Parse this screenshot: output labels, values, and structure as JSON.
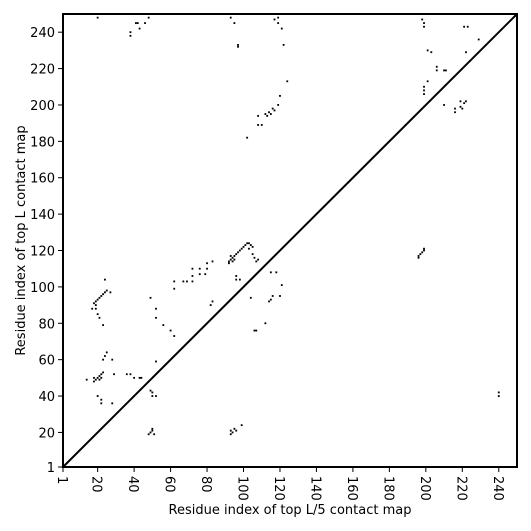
{
  "chart_data": {
    "type": "scatter",
    "xlabel": "Residue index of top L/5 contact map",
    "ylabel": "Residue index of top L contact map",
    "xlim": [
      1,
      250
    ],
    "ylim": [
      1,
      250
    ],
    "x_ticks": [
      "1",
      "20",
      "40",
      "60",
      "80",
      "100",
      "120",
      "140",
      "160",
      "180",
      "200",
      "220",
      "240"
    ],
    "y_ticks": [
      "1",
      "20",
      "40",
      "60",
      "80",
      "100",
      "120",
      "140",
      "160",
      "180",
      "200",
      "220",
      "240"
    ],
    "diagonal": true,
    "color": "#000000",
    "upper_points": [
      [
        20,
        248
      ],
      [
        38,
        240
      ],
      [
        38,
        238
      ],
      [
        41,
        245
      ],
      [
        42,
        245
      ],
      [
        43,
        242
      ],
      [
        46,
        245
      ],
      [
        48,
        248
      ],
      [
        93,
        248
      ],
      [
        95,
        245
      ],
      [
        97,
        233
      ],
      [
        97,
        232
      ],
      [
        117,
        247
      ],
      [
        119,
        248
      ],
      [
        119,
        245
      ],
      [
        121,
        242
      ],
      [
        122,
        233
      ],
      [
        198,
        247
      ],
      [
        199,
        245
      ],
      [
        199,
        243
      ],
      [
        201,
        230
      ],
      [
        203,
        229
      ],
      [
        206,
        221
      ],
      [
        206,
        219
      ],
      [
        210,
        219
      ],
      [
        211,
        219
      ],
      [
        221,
        243
      ],
      [
        223,
        243
      ],
      [
        222,
        229
      ],
      [
        229,
        236
      ],
      [
        124,
        213
      ],
      [
        120,
        205
      ],
      [
        119,
        200
      ],
      [
        116,
        198
      ],
      [
        114,
        196
      ],
      [
        115,
        195
      ],
      [
        113,
        194
      ],
      [
        112,
        195
      ],
      [
        117,
        197
      ],
      [
        108,
        194
      ],
      [
        108,
        189
      ],
      [
        110,
        189
      ],
      [
        102,
        182
      ],
      [
        118,
        108
      ],
      [
        115,
        108
      ],
      [
        116,
        95
      ],
      [
        120,
        95
      ],
      [
        114,
        92
      ],
      [
        115,
        93
      ],
      [
        121,
        101
      ],
      [
        104,
        94
      ],
      [
        106,
        76
      ],
      [
        107,
        76
      ],
      [
        112,
        80
      ],
      [
        106,
        116
      ],
      [
        107,
        114
      ],
      [
        108,
        115
      ],
      [
        105,
        122
      ],
      [
        105,
        118
      ]
    ],
    "lower_points": [
      [
        196,
        116
      ],
      [
        196,
        117
      ],
      [
        197,
        118
      ],
      [
        198,
        119
      ],
      [
        199,
        120
      ],
      [
        199,
        121
      ],
      [
        199,
        210
      ],
      [
        199,
        208
      ],
      [
        199,
        206
      ],
      [
        201,
        213
      ],
      [
        210,
        200
      ],
      [
        216,
        196
      ],
      [
        216,
        198
      ],
      [
        219,
        199
      ],
      [
        220,
        198
      ],
      [
        221,
        201
      ],
      [
        222,
        202
      ],
      [
        219,
        202
      ],
      [
        240,
        42
      ],
      [
        240,
        40
      ],
      [
        19,
        90
      ],
      [
        18,
        91
      ],
      [
        19,
        92
      ],
      [
        20,
        93
      ],
      [
        21,
        94
      ],
      [
        22,
        95
      ],
      [
        23,
        96
      ],
      [
        24,
        97
      ],
      [
        25,
        98
      ],
      [
        27,
        97
      ],
      [
        24,
        104
      ],
      [
        19,
        88
      ],
      [
        20,
        85
      ],
      [
        21,
        83
      ],
      [
        23,
        79
      ],
      [
        17,
        88
      ],
      [
        18,
        48
      ],
      [
        19,
        49
      ],
      [
        20,
        50
      ],
      [
        21,
        51
      ],
      [
        22,
        52
      ],
      [
        23,
        53
      ],
      [
        21,
        49
      ],
      [
        22,
        50
      ],
      [
        18,
        50
      ],
      [
        14,
        49
      ],
      [
        20,
        40
      ],
      [
        22,
        38
      ],
      [
        22,
        36
      ],
      [
        23,
        60
      ],
      [
        24,
        62
      ],
      [
        25,
        64
      ],
      [
        28,
        60
      ],
      [
        29,
        52
      ],
      [
        28,
        36
      ],
      [
        36,
        52
      ],
      [
        38,
        52
      ],
      [
        40,
        50
      ],
      [
        43,
        50
      ],
      [
        44,
        50
      ],
      [
        49,
        43
      ],
      [
        50,
        42
      ],
      [
        52,
        40
      ],
      [
        50,
        40
      ],
      [
        48,
        19
      ],
      [
        49,
        20
      ],
      [
        50,
        21
      ],
      [
        50,
        22
      ],
      [
        51,
        19
      ],
      [
        52,
        59
      ],
      [
        52,
        83
      ],
      [
        52,
        88
      ],
      [
        49,
        94
      ],
      [
        56,
        79
      ],
      [
        60,
        76
      ],
      [
        62,
        73
      ],
      [
        62,
        99
      ],
      [
        62,
        103
      ],
      [
        67,
        103
      ],
      [
        69,
        103
      ],
      [
        72,
        103
      ],
      [
        72,
        106
      ],
      [
        72,
        110
      ],
      [
        76,
        107
      ],
      [
        76,
        110
      ],
      [
        79,
        107
      ],
      [
        80,
        110
      ],
      [
        80,
        113
      ],
      [
        83,
        114
      ],
      [
        82,
        90
      ],
      [
        83,
        92
      ],
      [
        92,
        114
      ],
      [
        93,
        115
      ],
      [
        94,
        116
      ],
      [
        95,
        117
      ],
      [
        96,
        118
      ],
      [
        97,
        119
      ],
      [
        98,
        120
      ],
      [
        99,
        121
      ],
      [
        100,
        122
      ],
      [
        101,
        123
      ],
      [
        94,
        114
      ],
      [
        95,
        115
      ],
      [
        92,
        113
      ],
      [
        93,
        117
      ],
      [
        103,
        121
      ],
      [
        104,
        123
      ],
      [
        102,
        124
      ],
      [
        103,
        124
      ],
      [
        93,
        19
      ],
      [
        93,
        21
      ],
      [
        94,
        20
      ],
      [
        95,
        22
      ],
      [
        96,
        21
      ],
      [
        99,
        24
      ],
      [
        96,
        104
      ],
      [
        96,
        106
      ],
      [
        98,
        104
      ]
    ]
  }
}
